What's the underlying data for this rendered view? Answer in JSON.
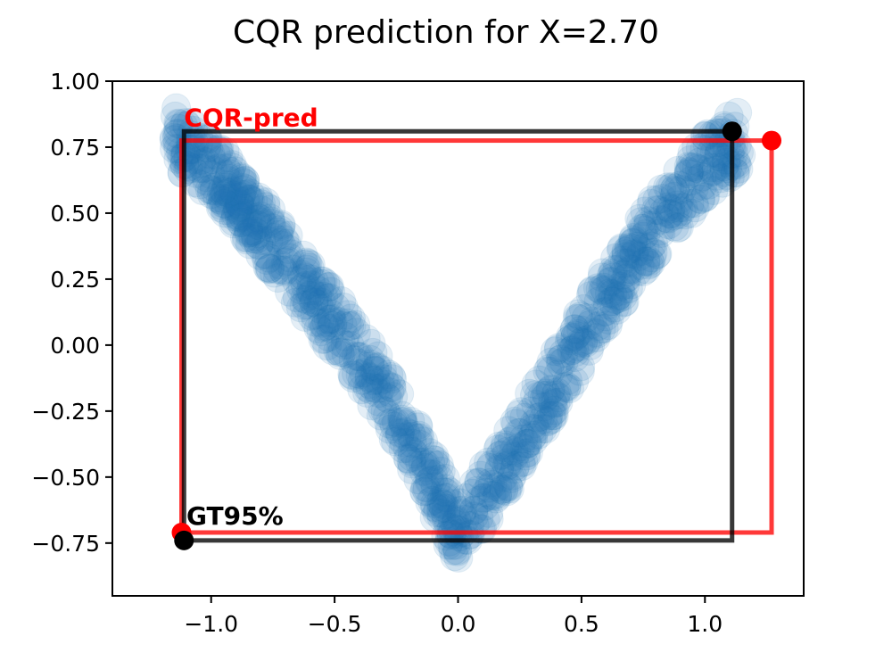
{
  "chart_data": {
    "type": "scatter",
    "title": "CQR prediction for X=2.70",
    "xlabel": "",
    "ylabel": "",
    "xlim": [
      -1.4,
      1.4
    ],
    "ylim": [
      -0.95,
      1.0
    ],
    "x_ticks": [
      -1.0,
      -0.5,
      0.0,
      0.5,
      1.0
    ],
    "x_tick_labels": [
      "−1.0",
      "−0.5",
      "0.0",
      "0.5",
      "1.0"
    ],
    "y_ticks": [
      1.0,
      0.75,
      0.5,
      0.25,
      0.0,
      -0.25,
      -0.5,
      -0.75
    ],
    "y_tick_labels": [
      "1.00",
      "0.75",
      "0.50",
      "0.25",
      "0.00",
      "−0.25",
      "−0.50",
      "−0.75"
    ],
    "grid": false,
    "scatter_color": "#1f77b4",
    "scatter_cloud": {
      "description_points": [
        {
          "x": -1.15,
          "y": 0.79
        },
        {
          "x": -1.0,
          "y": 0.68
        },
        {
          "x": -0.8,
          "y": 0.45
        },
        {
          "x": -0.6,
          "y": 0.2
        },
        {
          "x": -0.4,
          "y": -0.04
        },
        {
          "x": -0.2,
          "y": -0.33
        },
        {
          "x": 0.0,
          "y": -0.72
        },
        {
          "x": 0.2,
          "y": -0.44
        },
        {
          "x": 0.4,
          "y": -0.13
        },
        {
          "x": 0.6,
          "y": 0.18
        },
        {
          "x": 0.8,
          "y": 0.45
        },
        {
          "x": 1.0,
          "y": 0.68
        },
        {
          "x": 1.15,
          "y": 0.79
        }
      ],
      "band_halfwidth": 0.12
    },
    "boxes": [
      {
        "name": "CQR-pred",
        "color": "#ff0000",
        "x_min": -1.12,
        "x_max": 1.27,
        "y_min": -0.71,
        "y_max": 0.775,
        "corner_low": {
          "x": -1.12,
          "y": -0.71
        },
        "corner_high": {
          "x": 1.27,
          "y": 0.775
        }
      },
      {
        "name": "GT95%",
        "color": "#000000",
        "x_min": -1.11,
        "x_max": 1.11,
        "y_min": -0.74,
        "y_max": 0.81,
        "corner_low": {
          "x": -1.11,
          "y": -0.74
        },
        "corner_high": {
          "x": 1.11,
          "y": 0.81
        }
      }
    ],
    "annotations": [
      {
        "text": "CQR-pred",
        "color": "#ff0000",
        "x": -1.11,
        "y": 0.83
      },
      {
        "text": "GT95%",
        "color": "#000000",
        "x": -1.1,
        "y": -0.68
      }
    ]
  }
}
